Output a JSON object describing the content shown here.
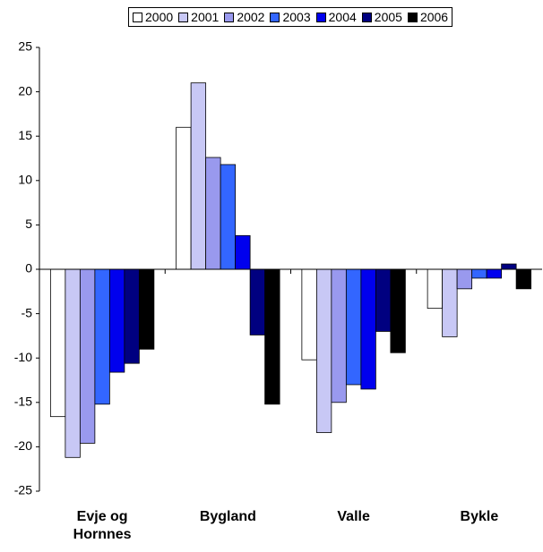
{
  "chart_data": {
    "type": "bar",
    "categories": [
      "Evje og Hornnes",
      "Bygland",
      "Valle",
      "Bykle"
    ],
    "series": [
      {
        "name": "2000",
        "color": "#ffffff",
        "values": [
          -16.6,
          16.0,
          -10.2,
          -4.4
        ]
      },
      {
        "name": "2001",
        "color": "#c8c8f5",
        "values": [
          -21.2,
          21.0,
          -18.4,
          -7.6
        ]
      },
      {
        "name": "2002",
        "color": "#9999ee",
        "values": [
          -19.6,
          12.6,
          -15.0,
          -2.2
        ]
      },
      {
        "name": "2003",
        "color": "#3366ff",
        "values": [
          -15.2,
          11.8,
          -13.0,
          -1.0
        ]
      },
      {
        "name": "2004",
        "color": "#0000ee",
        "values": [
          -11.6,
          3.8,
          -13.5,
          -1.0
        ]
      },
      {
        "name": "2005",
        "color": "#000080",
        "values": [
          -10.6,
          -7.4,
          -7.0,
          0.6
        ]
      },
      {
        "name": "2006",
        "color": "#000000",
        "values": [
          -9.0,
          -15.2,
          -9.4,
          -2.2
        ]
      }
    ],
    "ylim": [
      -25,
      25
    ],
    "yticks": [
      -25,
      -20,
      -15,
      -10,
      -5,
      0,
      5,
      10,
      15,
      20,
      25
    ],
    "grid": false,
    "legend": "top"
  }
}
